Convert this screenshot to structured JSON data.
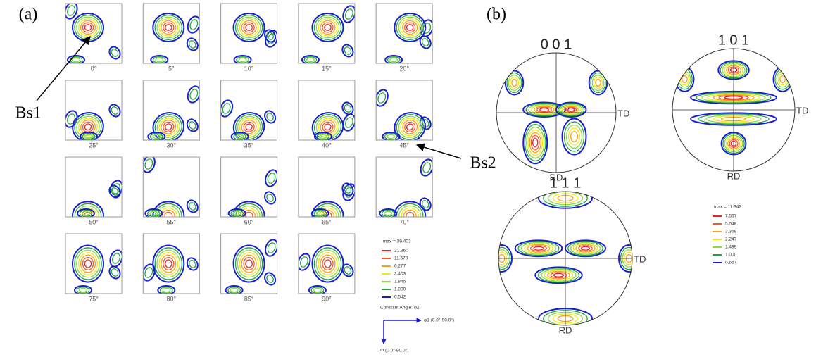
{
  "panel_a": {
    "label": "(a)",
    "sections": [
      "0°",
      "5°",
      "10°",
      "15°",
      "20°",
      "25°",
      "30°",
      "35°",
      "40°",
      "45°",
      "50°",
      "55°",
      "60°",
      "65°",
      "70°",
      "75°",
      "80°",
      "85°",
      "90°"
    ],
    "legend": {
      "max": "max = 39.403",
      "levels": [
        {
          "label": "21.360",
          "color": "#e8202a"
        },
        {
          "label": "11.579",
          "color": "#f05a28"
        },
        {
          "label": "6.277",
          "color": "#f7a21b"
        },
        {
          "label": "3.403",
          "color": "#f4e61c"
        },
        {
          "label": "1.845",
          "color": "#8fd84a"
        },
        {
          "label": "1.000",
          "color": "#1fa83c"
        },
        {
          "label": "0.542",
          "color": "#1c1cd0"
        }
      ],
      "note": "Constant Angle: φ2"
    },
    "axis_x": "φ1 (0.0°-90.0°)",
    "axis_y": "Φ (0.0°-90.0°)",
    "annotations": [
      "Bs1",
      "Bs2"
    ]
  },
  "panel_b": {
    "label": "(b)",
    "pole_figures": [
      {
        "title": "0 0 1",
        "td": "TD",
        "rd": "RD"
      },
      {
        "title": "1 0 1",
        "td": "TD",
        "rd": "RD"
      },
      {
        "title": "1 1 1",
        "td": "TD",
        "rd": "RD"
      }
    ],
    "legend": {
      "max": "max = 11.343",
      "levels": [
        {
          "label": "7.567",
          "color": "#e8202a"
        },
        {
          "label": "5.048",
          "color": "#f05a28"
        },
        {
          "label": "3.368",
          "color": "#f7a21b"
        },
        {
          "label": "2.247",
          "color": "#f4e61c"
        },
        {
          "label": "1.499",
          "color": "#8fd84a"
        },
        {
          "label": "1.000",
          "color": "#1fa83c"
        },
        {
          "label": "0.667",
          "color": "#1c1cd0"
        }
      ]
    }
  }
}
